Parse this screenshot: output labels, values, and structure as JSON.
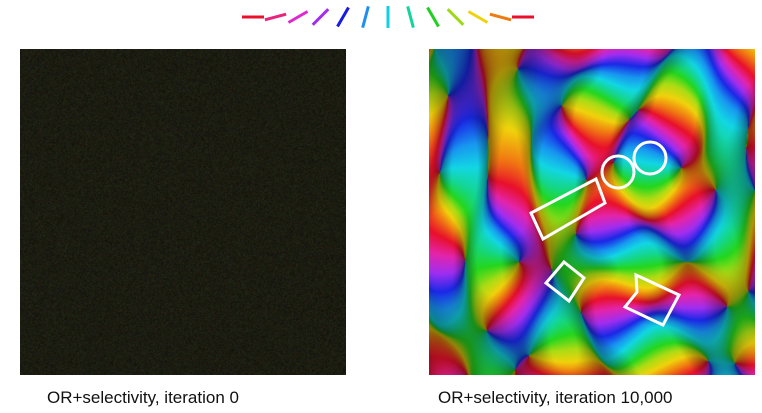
{
  "legend": {
    "orientation_count": 12,
    "colors": [
      "#e8102a",
      "#e8247c",
      "#e028cf",
      "#a22ef0",
      "#1a1ae0",
      "#1e8ef0",
      "#12d0e4",
      "#14d49c",
      "#20d020",
      "#9ed816",
      "#f0d20c",
      "#f07a12",
      "#e8102a"
    ]
  },
  "panels": {
    "left": {
      "caption": "OR+selectivity, iteration 0"
    },
    "right": {
      "caption": "OR+selectivity, iteration 10,000"
    }
  },
  "annotations": {
    "color": "#ffffff",
    "shapes": [
      "circle",
      "circle",
      "rectangle",
      "diamond",
      "bowtie"
    ]
  }
}
